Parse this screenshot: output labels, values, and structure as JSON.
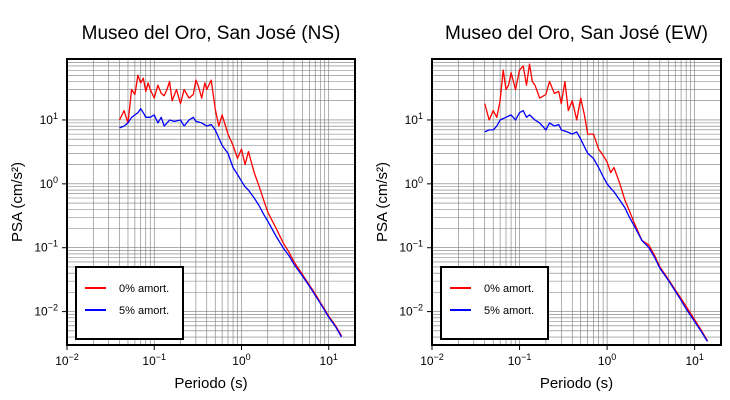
{
  "chart_data": [
    {
      "type": "line",
      "title": "Museo del Oro, San José (NS)",
      "xlabel": "Periodo (s)",
      "ylabel": "PSA (cm/s²)",
      "xscale": "log",
      "yscale": "log",
      "xlim": [
        0.01,
        20
      ],
      "ylim": [
        0.003,
        90
      ],
      "xticks": [
        {
          "value": 0.01,
          "base": "10",
          "exp": "−2"
        },
        {
          "value": 0.1,
          "base": "10",
          "exp": "−1"
        },
        {
          "value": 1,
          "base": "10",
          "exp": "0"
        },
        {
          "value": 10,
          "base": "10",
          "exp": "1"
        }
      ],
      "yticks": [
        {
          "value": 0.01,
          "base": "10",
          "exp": "−2"
        },
        {
          "value": 0.1,
          "base": "10",
          "exp": "−1"
        },
        {
          "value": 1,
          "base": "10",
          "exp": "0"
        },
        {
          "value": 10,
          "base": "10",
          "exp": "1"
        }
      ],
      "grid": true,
      "legend_position": "bottom-left",
      "series": [
        {
          "name": "0% amort.",
          "color": "#ff0000",
          "x": [
            0.04,
            0.045,
            0.05,
            0.055,
            0.06,
            0.065,
            0.07,
            0.075,
            0.08,
            0.085,
            0.09,
            0.1,
            0.11,
            0.12,
            0.13,
            0.14,
            0.15,
            0.16,
            0.18,
            0.2,
            0.22,
            0.25,
            0.28,
            0.3,
            0.32,
            0.35,
            0.38,
            0.4,
            0.45,
            0.5,
            0.55,
            0.6,
            0.7,
            0.8,
            0.9,
            1.0,
            1.1,
            1.2,
            1.4,
            1.6,
            1.8,
            2.0,
            2.5,
            3.0,
            3.5,
            4.0,
            5.0,
            6.0,
            7.0,
            8.0,
            10.0,
            12.0,
            14.0
          ],
          "y": [
            10,
            14,
            9,
            30,
            25,
            50,
            38,
            45,
            28,
            38,
            30,
            22,
            35,
            26,
            24,
            30,
            40,
            20,
            30,
            18,
            30,
            22,
            25,
            42,
            34,
            22,
            38,
            30,
            42,
            15,
            8,
            12,
            6,
            4,
            2.5,
            3.5,
            2.0,
            3.2,
            1.5,
            0.9,
            0.55,
            0.36,
            0.2,
            0.12,
            0.085,
            0.06,
            0.038,
            0.026,
            0.019,
            0.014,
            0.0085,
            0.006,
            0.0042
          ]
        },
        {
          "name": "5% amort.",
          "color": "#0000ff",
          "x": [
            0.04,
            0.045,
            0.05,
            0.055,
            0.06,
            0.065,
            0.07,
            0.075,
            0.08,
            0.09,
            0.1,
            0.11,
            0.12,
            0.13,
            0.15,
            0.17,
            0.2,
            0.22,
            0.25,
            0.28,
            0.3,
            0.35,
            0.4,
            0.45,
            0.5,
            0.6,
            0.7,
            0.8,
            0.9,
            1.0,
            1.1,
            1.2,
            1.4,
            1.6,
            1.8,
            2.0,
            2.5,
            3.0,
            3.5,
            4.0,
            5.0,
            6.0,
            7.0,
            8.0,
            10.0,
            12.0,
            14.0
          ],
          "y": [
            7.5,
            8,
            9,
            11,
            12,
            13,
            15,
            13,
            11,
            11,
            12,
            9,
            11,
            8,
            10,
            9.5,
            10,
            8,
            10,
            11,
            9.5,
            9,
            8,
            8.5,
            7,
            4,
            3,
            1.8,
            1.4,
            1.1,
            0.9,
            0.8,
            0.6,
            0.45,
            0.33,
            0.26,
            0.15,
            0.1,
            0.075,
            0.055,
            0.036,
            0.025,
            0.018,
            0.0135,
            0.0082,
            0.0058,
            0.004
          ]
        }
      ]
    },
    {
      "type": "line",
      "title": "Museo del Oro, San José (EW)",
      "xlabel": "Periodo (s)",
      "ylabel": "PSA (cm/s²)",
      "xscale": "log",
      "yscale": "log",
      "xlim": [
        0.01,
        20
      ],
      "ylim": [
        0.003,
        90
      ],
      "xticks": [
        {
          "value": 0.01,
          "base": "10",
          "exp": "−2"
        },
        {
          "value": 0.1,
          "base": "10",
          "exp": "−1"
        },
        {
          "value": 1,
          "base": "10",
          "exp": "0"
        },
        {
          "value": 10,
          "base": "10",
          "exp": "1"
        }
      ],
      "yticks": [
        {
          "value": 0.01,
          "base": "10",
          "exp": "−2"
        },
        {
          "value": 0.1,
          "base": "10",
          "exp": "−1"
        },
        {
          "value": 1,
          "base": "10",
          "exp": "0"
        },
        {
          "value": 10,
          "base": "10",
          "exp": "1"
        }
      ],
      "grid": true,
      "legend_position": "bottom-left",
      "series": [
        {
          "name": "0% amort.",
          "color": "#ff0000",
          "x": [
            0.04,
            0.045,
            0.05,
            0.055,
            0.06,
            0.065,
            0.07,
            0.075,
            0.08,
            0.09,
            0.1,
            0.11,
            0.12,
            0.13,
            0.14,
            0.15,
            0.17,
            0.2,
            0.22,
            0.25,
            0.28,
            0.3,
            0.33,
            0.36,
            0.4,
            0.45,
            0.5,
            0.55,
            0.6,
            0.7,
            0.8,
            0.9,
            1.0,
            1.1,
            1.2,
            1.4,
            1.6,
            1.8,
            2.0,
            2.5,
            3.0,
            3.5,
            4.0,
            5.0,
            6.0,
            7.0,
            8.0,
            10.0,
            12.0,
            14.0
          ],
          "y": [
            18,
            10,
            14,
            11,
            20,
            60,
            30,
            35,
            55,
            30,
            60,
            70,
            35,
            75,
            40,
            35,
            22,
            25,
            40,
            26,
            28,
            18,
            40,
            14,
            20,
            10,
            22,
            12,
            6,
            6,
            3.5,
            2.8,
            2.2,
            1.5,
            1.8,
            1.0,
            0.55,
            0.38,
            0.26,
            0.13,
            0.11,
            0.075,
            0.05,
            0.032,
            0.022,
            0.016,
            0.012,
            0.0075,
            0.005,
            0.0035
          ]
        },
        {
          "name": "5% amort.",
          "color": "#0000ff",
          "x": [
            0.04,
            0.045,
            0.05,
            0.055,
            0.06,
            0.07,
            0.08,
            0.09,
            0.1,
            0.11,
            0.12,
            0.13,
            0.15,
            0.17,
            0.2,
            0.22,
            0.25,
            0.28,
            0.3,
            0.35,
            0.4,
            0.45,
            0.5,
            0.6,
            0.7,
            0.8,
            0.9,
            1.0,
            1.1,
            1.2,
            1.4,
            1.6,
            1.8,
            2.0,
            2.5,
            3.0,
            3.5,
            4.0,
            5.0,
            6.0,
            7.0,
            8.0,
            10.0,
            12.0,
            14.0
          ],
          "y": [
            6.5,
            7,
            7,
            8,
            10,
            11,
            12,
            10,
            13,
            14,
            11,
            12,
            10,
            9,
            7,
            9,
            8,
            8.5,
            7,
            6.5,
            6,
            6.5,
            5,
            3,
            2.5,
            1.8,
            1.3,
            1.0,
            0.85,
            0.75,
            0.55,
            0.42,
            0.3,
            0.23,
            0.13,
            0.1,
            0.07,
            0.048,
            0.031,
            0.021,
            0.015,
            0.011,
            0.007,
            0.0048,
            0.0034
          ]
        }
      ]
    }
  ]
}
